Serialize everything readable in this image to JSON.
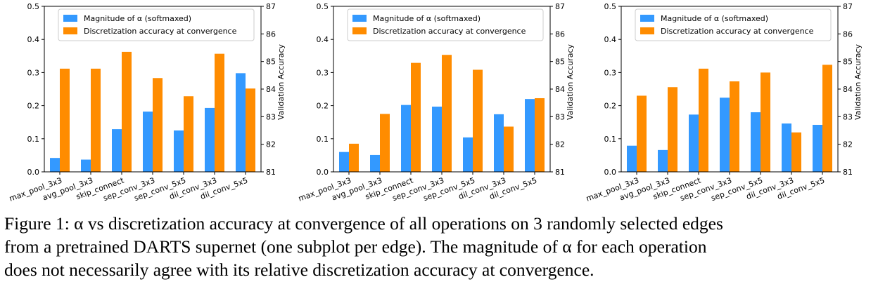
{
  "colors": {
    "alpha": "#3399ff",
    "accuracy": "#ff8c00"
  },
  "legend": {
    "alpha_label": "Magnitude of α (softmaxed)",
    "accuracy_label": "Discretization accuracy at convergence",
    "placement": "top-center"
  },
  "chart_data": [
    {
      "type": "bar",
      "categories": [
        "max_pool_3x3",
        "avg_pool_3x3",
        "skip_connect",
        "sep_conv_3x3",
        "sep_conv_5x5",
        "dil_conv_3x3",
        "dil_conv_5x5"
      ],
      "series": [
        {
          "name": "Magnitude of α (softmaxed)",
          "axis": "left",
          "values": [
            0.042,
            0.037,
            0.129,
            0.182,
            0.125,
            0.193,
            0.298
          ]
        },
        {
          "name": "Discretization accuracy at convergence",
          "axis": "right",
          "values": [
            84.74,
            84.74,
            85.35,
            84.4,
            83.74,
            85.28,
            84.02
          ]
        }
      ],
      "ylim": [
        0,
        0.5
      ],
      "y2lim": [
        81,
        87
      ],
      "yticks": [
        "0.0",
        "0.1",
        "0.2",
        "0.3",
        "0.4",
        "0.5"
      ],
      "y2ticks": [
        "81",
        "82",
        "83",
        "84",
        "85",
        "86",
        "87"
      ],
      "y2label": "Validation Accuracy"
    },
    {
      "type": "bar",
      "categories": [
        "max_pool_3x3",
        "avg_pool_3x3",
        "skip_connect",
        "sep_conv_3x3",
        "sep_conv_5x5",
        "dil_conv_3x3",
        "dil_conv_5x5"
      ],
      "series": [
        {
          "name": "Magnitude of α (softmaxed)",
          "axis": "left",
          "values": [
            0.06,
            0.051,
            0.202,
            0.197,
            0.104,
            0.174,
            0.22
          ]
        },
        {
          "name": "Discretization accuracy at convergence",
          "axis": "right",
          "values": [
            82.02,
            83.1,
            84.95,
            85.24,
            84.7,
            82.64,
            83.67
          ]
        }
      ],
      "ylim": [
        0,
        0.5
      ],
      "y2lim": [
        81,
        87
      ],
      "yticks": [
        "0.0",
        "0.1",
        "0.2",
        "0.3",
        "0.4",
        "0.5"
      ],
      "y2ticks": [
        "81",
        "82",
        "83",
        "84",
        "85",
        "86",
        "87"
      ],
      "y2label": "Validation Accuracy"
    },
    {
      "type": "bar",
      "categories": [
        "max_pool_3x3",
        "avg_pool_3x3",
        "skip_connect",
        "sep_conv_3x3",
        "sep_conv_5x5",
        "dil_conv_3x3",
        "dil_conv_5x5"
      ],
      "series": [
        {
          "name": "Magnitude of α (softmaxed)",
          "axis": "left",
          "values": [
            0.079,
            0.066,
            0.173,
            0.224,
            0.18,
            0.146,
            0.142
          ]
        },
        {
          "name": "Discretization accuracy at convergence",
          "axis": "right",
          "values": [
            83.76,
            84.07,
            84.74,
            84.28,
            84.6,
            82.43,
            84.88
          ]
        }
      ],
      "ylim": [
        0,
        0.5
      ],
      "y2lim": [
        81,
        87
      ],
      "yticks": [
        "0.0",
        "0.1",
        "0.2",
        "0.3",
        "0.4",
        "0.5"
      ],
      "y2ticks": [
        "81",
        "82",
        "83",
        "84",
        "85",
        "86",
        "87"
      ],
      "y2label": "Validation Accuracy"
    }
  ],
  "caption": {
    "line1": "Figure 1: α vs discretization accuracy at convergence of all operations on 3 randomly selected edges",
    "line2": "from a pretrained DARTS supernet (one subplot per edge). The magnitude of α for each operation",
    "line3": "does not necessarily agree with its relative discretization accuracy at convergence."
  }
}
